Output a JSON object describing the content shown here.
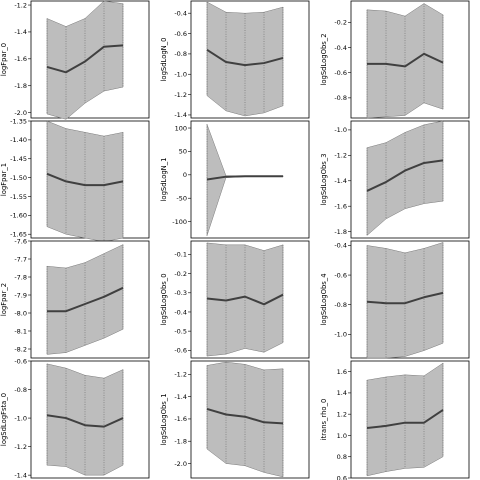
{
  "chart_data": [
    {
      "type": "line",
      "ylabel": "logFpar_0",
      "x": [
        1,
        2,
        3,
        4,
        5
      ],
      "series": [
        {
          "values": [
            -1.66,
            -1.7,
            -1.62,
            -1.51,
            -1.5
          ]
        }
      ],
      "band": {
        "lower": [
          -2.01,
          -2.05,
          -1.93,
          -1.84,
          -1.81
        ],
        "upper": [
          -1.3,
          -1.36,
          -1.3,
          -1.17,
          -1.19
        ]
      },
      "ylim": [
        -2.04,
        -1.17
      ],
      "yticks": [
        -2.0,
        -1.8,
        -1.6,
        -1.4,
        -1.2
      ],
      "ytick_labels": [
        "-2.0",
        "-1.8",
        "-1.6",
        "-1.4",
        "-1.2"
      ]
    },
    {
      "type": "line",
      "ylabel": "logSdLogN_0",
      "x": [
        1,
        2,
        3,
        4,
        5
      ],
      "series": [
        {
          "values": [
            -0.76,
            -0.88,
            -0.91,
            -0.89,
            -0.84
          ]
        }
      ],
      "band": {
        "lower": [
          -1.21,
          -1.36,
          -1.41,
          -1.38,
          -1.31
        ],
        "upper": [
          -0.29,
          -0.39,
          -0.4,
          -0.39,
          -0.34
        ]
      },
      "ylim": [
        -1.43,
        -0.28
      ],
      "yticks": [
        -1.4,
        -1.2,
        -1.0,
        -0.8,
        -0.6,
        -0.4
      ],
      "ytick_labels": [
        "-1.4",
        "-1.2",
        "-1.0",
        "-0.8",
        "-0.6",
        "-0.4"
      ]
    },
    {
      "type": "line",
      "ylabel": "logSdLogObs_2",
      "x": [
        1,
        2,
        3,
        4,
        5
      ],
      "series": [
        {
          "values": [
            -0.53,
            -0.53,
            -0.55,
            -0.45,
            -0.52
          ]
        }
      ],
      "band": {
        "lower": [
          -0.96,
          -0.95,
          -0.94,
          -0.84,
          -0.89
        ],
        "upper": [
          -0.1,
          -0.11,
          -0.15,
          -0.05,
          -0.14
        ]
      },
      "ylim": [
        -0.96,
        -0.03
      ],
      "yticks": [
        -0.8,
        -0.6,
        -0.4,
        -0.2
      ],
      "ytick_labels": [
        "-0.8",
        "-0.6",
        "-0.4",
        "-0.2"
      ]
    },
    {
      "type": "line",
      "ylabel": "logFpar_1",
      "x": [
        1,
        2,
        3,
        4,
        5
      ],
      "series": [
        {
          "values": [
            -1.49,
            -1.51,
            -1.52,
            -1.52,
            -1.51
          ]
        }
      ],
      "band": {
        "lower": [
          -1.63,
          -1.65,
          -1.66,
          -1.67,
          -1.66
        ],
        "upper": [
          -1.35,
          -1.37,
          -1.38,
          -1.39,
          -1.38
        ]
      },
      "ylim": [
        -1.66,
        -1.35
      ],
      "yticks": [
        -1.65,
        -1.6,
        -1.55,
        -1.5,
        -1.45,
        -1.4,
        -1.35
      ],
      "ytick_labels": [
        "-1.65",
        "-1.60",
        "-1.55",
        "-1.50",
        "-1.45",
        "-1.40",
        "-1.35"
      ]
    },
    {
      "type": "line",
      "ylabel": "logSdLogN_1",
      "x": [
        1,
        2,
        3,
        4,
        5
      ],
      "series": [
        {
          "values": [
            -10,
            -4,
            -3,
            -3,
            -3
          ]
        }
      ],
      "band": {
        "lower": [
          -130,
          -6,
          -4,
          -4,
          -4
        ],
        "upper": [
          108,
          -2,
          -2,
          -2,
          -2
        ]
      },
      "ylim": [
        -135,
        115
      ],
      "yticks": [
        -100,
        -50,
        0,
        50,
        100
      ],
      "ytick_labels": [
        "-100",
        "-50",
        "0",
        "50",
        "100"
      ]
    },
    {
      "type": "line",
      "ylabel": "logSdLogObs_3",
      "x": [
        1,
        2,
        3,
        4,
        5
      ],
      "series": [
        {
          "values": [
            -1.48,
            -1.41,
            -1.32,
            -1.26,
            -1.24
          ]
        }
      ],
      "band": {
        "lower": [
          -1.83,
          -1.7,
          -1.62,
          -1.58,
          -1.56
        ],
        "upper": [
          -1.14,
          -1.1,
          -1.02,
          -0.96,
          -0.93
        ]
      },
      "ylim": [
        -1.85,
        -0.93
      ],
      "yticks": [
        -1.8,
        -1.6,
        -1.4,
        -1.2,
        -1.0
      ],
      "ytick_labels": [
        "-1.8",
        "-1.6",
        "-1.4",
        "-1.2",
        "-1.0"
      ]
    },
    {
      "type": "line",
      "ylabel": "logFpar_2",
      "x": [
        1,
        2,
        3,
        4,
        5
      ],
      "series": [
        {
          "values": [
            -7.99,
            -7.99,
            -7.95,
            -7.91,
            -7.86
          ]
        }
      ],
      "band": {
        "lower": [
          -8.23,
          -8.22,
          -8.18,
          -8.14,
          -8.09
        ],
        "upper": [
          -7.74,
          -7.75,
          -7.72,
          -7.67,
          -7.62
        ]
      },
      "ylim": [
        -8.25,
        -7.6
      ],
      "yticks": [
        -8.2,
        -8.1,
        -8.0,
        -7.9,
        -7.8,
        -7.7,
        -7.6
      ],
      "ytick_labels": [
        "-8.2",
        "-8.1",
        "-8.0",
        "-7.9",
        "-7.8",
        "-7.7",
        "-7.6"
      ]
    },
    {
      "type": "line",
      "ylabel": "logSdLogObs_0",
      "x": [
        1,
        2,
        3,
        4,
        5
      ],
      "series": [
        {
          "values": [
            -0.33,
            -0.34,
            -0.32,
            -0.36,
            -0.31
          ]
        }
      ],
      "band": {
        "lower": [
          -0.63,
          -0.62,
          -0.59,
          -0.61,
          -0.56
        ],
        "upper": [
          -0.04,
          -0.05,
          -0.05,
          -0.08,
          -0.05
        ]
      },
      "ylim": [
        -0.64,
        -0.03
      ],
      "yticks": [
        -0.6,
        -0.5,
        -0.4,
        -0.3,
        -0.2,
        -0.1
      ],
      "ytick_labels": [
        "-0.6",
        "-0.5",
        "-0.4",
        "-0.3",
        "-0.2",
        "-0.1"
      ]
    },
    {
      "type": "line",
      "ylabel": "logSdLogObs_4",
      "x": [
        1,
        2,
        3,
        4,
        5
      ],
      "series": [
        {
          "values": [
            -0.78,
            -0.79,
            -0.79,
            -0.75,
            -0.72
          ]
        }
      ],
      "band": {
        "lower": [
          -1.16,
          -1.16,
          -1.15,
          -1.11,
          -1.06
        ],
        "upper": [
          -0.4,
          -0.42,
          -0.45,
          -0.42,
          -0.38
        ]
      },
      "ylim": [
        -1.16,
        -0.37
      ],
      "yticks": [
        -1.0,
        -0.8,
        -0.6,
        -0.4
      ],
      "ytick_labels": [
        "-1.0",
        "-0.8",
        "-0.6",
        "-0.4"
      ]
    },
    {
      "type": "line",
      "ylabel": "logSdLogFsta_0",
      "x": [
        1,
        2,
        3,
        4,
        5
      ],
      "series": [
        {
          "values": [
            -0.98,
            -1.0,
            -1.05,
            -1.06,
            -1.0
          ]
        }
      ],
      "band": {
        "lower": [
          -1.33,
          -1.34,
          -1.4,
          -1.4,
          -1.33
        ],
        "upper": [
          -0.62,
          -0.65,
          -0.7,
          -0.72,
          -0.66
        ]
      },
      "ylim": [
        -1.42,
        -0.6
      ],
      "yticks": [
        -1.4,
        -1.2,
        -1.0,
        -0.8,
        -0.6
      ],
      "ytick_labels": [
        "-1.4",
        "-1.2",
        "-1.0",
        "-0.8",
        "-0.6"
      ]
    },
    {
      "type": "line",
      "ylabel": "logSdLogObs_1",
      "x": [
        1,
        2,
        3,
        4,
        5
      ],
      "series": [
        {
          "values": [
            -1.51,
            -1.56,
            -1.58,
            -1.63,
            -1.64
          ]
        }
      ],
      "band": {
        "lower": [
          -1.87,
          -2.0,
          -2.02,
          -2.08,
          -2.12
        ],
        "upper": [
          -1.12,
          -1.09,
          -1.11,
          -1.16,
          -1.15
        ]
      },
      "ylim": [
        -2.13,
        -1.08
      ],
      "yticks": [
        -2.0,
        -1.8,
        -1.6,
        -1.4,
        -1.2
      ],
      "ytick_labels": [
        "-2.0",
        "-1.8",
        "-1.6",
        "-1.4",
        "-1.2"
      ]
    },
    {
      "type": "line",
      "ylabel": "itrans_rho_0",
      "x": [
        1,
        2,
        3,
        4,
        5
      ],
      "series": [
        {
          "values": [
            1.07,
            1.09,
            1.12,
            1.12,
            1.24
          ]
        }
      ],
      "band": {
        "lower": [
          0.62,
          0.66,
          0.69,
          0.7,
          0.8
        ],
        "upper": [
          1.52,
          1.55,
          1.57,
          1.56,
          1.68
        ]
      },
      "ylim": [
        0.6,
        1.7
      ],
      "yticks": [
        0.6,
        0.8,
        1.0,
        1.2,
        1.4,
        1.6
      ],
      "ytick_labels": [
        "0.6",
        "0.8",
        "1.0",
        "1.2",
        "1.4",
        "1.6"
      ]
    }
  ]
}
